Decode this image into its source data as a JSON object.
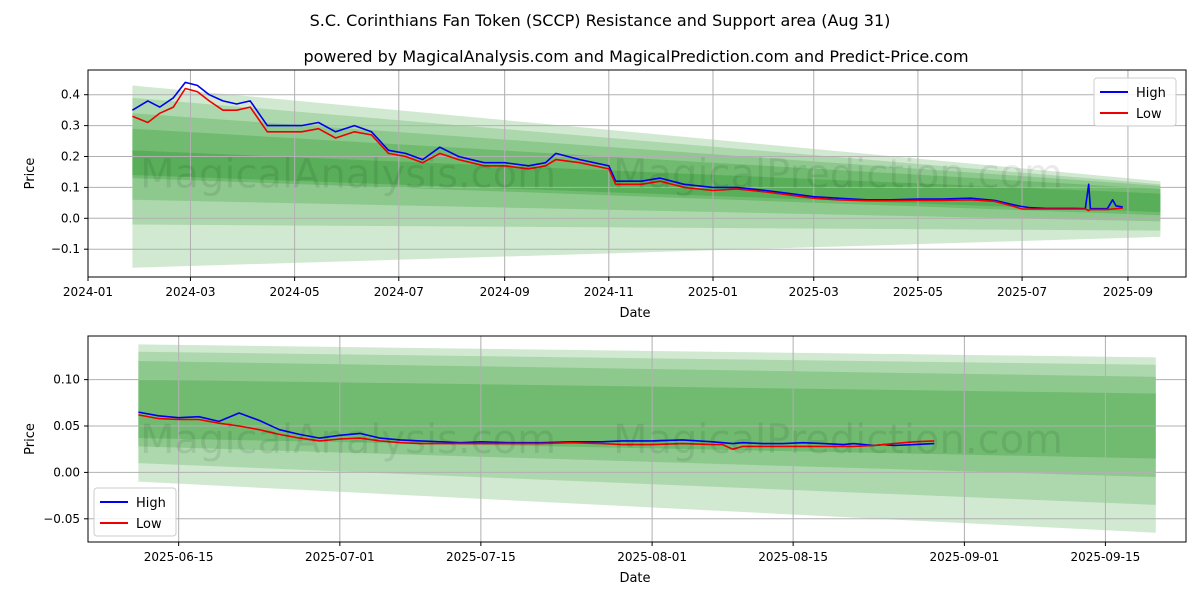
{
  "title": "S.C. Corinthians Fan Token (SCCP) Resistance and Support area (Aug 31)",
  "subtitle": "powered by MagicalAnalysis.com and MagicalPrediction.com and Predict-Price.com",
  "watermark": [
    "MagicalAnalysis.com",
    "MagicalPrediction.com"
  ],
  "colors": {
    "high": "#0000ee",
    "low": "#ee0000",
    "band": "#2e9a2e"
  },
  "chart_data": [
    {
      "type": "line",
      "xlabel": "Date",
      "ylabel": "Price",
      "xlim": [
        "2024-01-01",
        "2025-10-05"
      ],
      "ylim": [
        -0.19,
        0.48
      ],
      "x_ticks": [
        "2024-01",
        "2024-03",
        "2024-05",
        "2024-07",
        "2024-09",
        "2024-11",
        "2025-01",
        "2025-03",
        "2025-05",
        "2025-07",
        "2025-09"
      ],
      "y_ticks": [
        -0.1,
        0.0,
        0.1,
        0.2,
        0.3,
        0.4
      ],
      "y_tick_labels": [
        "−0.1",
        "0.0",
        "0.1",
        "0.2",
        "0.3",
        "0.4"
      ],
      "grid": true,
      "legend": "top-right",
      "series": [
        {
          "name": "High",
          "x": [
            "2024-01-27",
            "2024-02-05",
            "2024-02-12",
            "2024-02-20",
            "2024-02-27",
            "2024-03-05",
            "2024-03-12",
            "2024-03-20",
            "2024-03-28",
            "2024-04-05",
            "2024-04-15",
            "2024-04-25",
            "2024-05-05",
            "2024-05-15",
            "2024-05-25",
            "2024-06-05",
            "2024-06-15",
            "2024-06-25",
            "2024-07-05",
            "2024-07-15",
            "2024-07-25",
            "2024-08-05",
            "2024-08-20",
            "2024-09-01",
            "2024-09-15",
            "2024-09-25",
            "2024-10-01",
            "2024-10-15",
            "2024-11-01",
            "2024-11-05",
            "2024-11-20",
            "2024-12-01",
            "2024-12-15",
            "2025-01-01",
            "2025-01-15",
            "2025-02-01",
            "2025-02-15",
            "2025-03-01",
            "2025-03-15",
            "2025-04-01",
            "2025-04-15",
            "2025-05-01",
            "2025-05-15",
            "2025-06-01",
            "2025-06-15",
            "2025-06-25",
            "2025-07-01",
            "2025-07-05",
            "2025-07-15",
            "2025-08-01",
            "2025-08-07",
            "2025-08-09",
            "2025-08-10",
            "2025-08-20",
            "2025-08-23",
            "2025-08-25",
            "2025-08-29"
          ],
          "values": [
            0.35,
            0.38,
            0.36,
            0.39,
            0.44,
            0.43,
            0.4,
            0.38,
            0.37,
            0.38,
            0.3,
            0.3,
            0.3,
            0.31,
            0.28,
            0.3,
            0.28,
            0.22,
            0.21,
            0.19,
            0.23,
            0.2,
            0.18,
            0.18,
            0.17,
            0.18,
            0.21,
            0.19,
            0.17,
            0.12,
            0.12,
            0.13,
            0.11,
            0.1,
            0.1,
            0.09,
            0.08,
            0.07,
            0.065,
            0.06,
            0.06,
            0.062,
            0.062,
            0.065,
            0.058,
            0.045,
            0.038,
            0.035,
            0.032,
            0.032,
            0.031,
            0.11,
            0.031,
            0.031,
            0.06,
            0.04,
            0.037
          ]
        },
        {
          "name": "Low",
          "x": [
            "2024-01-27",
            "2024-02-05",
            "2024-02-12",
            "2024-02-20",
            "2024-02-27",
            "2024-03-05",
            "2024-03-12",
            "2024-03-20",
            "2024-03-28",
            "2024-04-05",
            "2024-04-15",
            "2024-04-25",
            "2024-05-05",
            "2024-05-15",
            "2024-05-25",
            "2024-06-05",
            "2024-06-15",
            "2024-06-25",
            "2024-07-05",
            "2024-07-15",
            "2024-07-25",
            "2024-08-05",
            "2024-08-20",
            "2024-09-01",
            "2024-09-15",
            "2024-09-25",
            "2024-10-01",
            "2024-10-15",
            "2024-11-01",
            "2024-11-05",
            "2024-11-20",
            "2024-12-01",
            "2024-12-15",
            "2025-01-01",
            "2025-01-15",
            "2025-02-01",
            "2025-02-15",
            "2025-03-01",
            "2025-03-15",
            "2025-04-01",
            "2025-04-15",
            "2025-05-01",
            "2025-05-15",
            "2025-06-01",
            "2025-06-15",
            "2025-06-25",
            "2025-07-01",
            "2025-07-05",
            "2025-07-15",
            "2025-08-01",
            "2025-08-07",
            "2025-08-09",
            "2025-08-10",
            "2025-08-20",
            "2025-08-23",
            "2025-08-25",
            "2025-08-29"
          ],
          "values": [
            0.33,
            0.31,
            0.34,
            0.36,
            0.42,
            0.41,
            0.38,
            0.35,
            0.35,
            0.36,
            0.28,
            0.28,
            0.28,
            0.29,
            0.26,
            0.28,
            0.27,
            0.21,
            0.2,
            0.18,
            0.21,
            0.19,
            0.17,
            0.17,
            0.16,
            0.17,
            0.19,
            0.18,
            0.16,
            0.11,
            0.11,
            0.12,
            0.1,
            0.09,
            0.095,
            0.085,
            0.075,
            0.065,
            0.06,
            0.057,
            0.057,
            0.058,
            0.058,
            0.06,
            0.055,
            0.04,
            0.03,
            0.03,
            0.03,
            0.03,
            0.03,
            0.025,
            0.028,
            0.028,
            0.03,
            0.031,
            0.033
          ]
        }
      ],
      "support_resistance_bands": [
        {
          "x": [
            "2024-01-27",
            "2025-09-20"
          ],
          "upper": [
            0.43,
            0.12
          ],
          "lower": [
            -0.16,
            -0.06
          ]
        },
        {
          "x": [
            "2024-01-27",
            "2025-09-20"
          ],
          "upper": [
            0.39,
            0.11
          ],
          "lower": [
            -0.02,
            -0.04
          ]
        },
        {
          "x": [
            "2024-01-27",
            "2025-09-20"
          ],
          "upper": [
            0.34,
            0.105
          ],
          "lower": [
            0.06,
            -0.01
          ]
        },
        {
          "x": [
            "2024-01-27",
            "2025-09-20"
          ],
          "upper": [
            0.29,
            0.095
          ],
          "lower": [
            0.13,
            0.01
          ]
        },
        {
          "x": [
            "2024-01-27",
            "2025-09-20"
          ],
          "upper": [
            0.22,
            0.08
          ],
          "lower": [
            0.14,
            0.02
          ]
        }
      ]
    },
    {
      "type": "line",
      "xlabel": "Date",
      "ylabel": "Price",
      "xlim": [
        "2025-06-06",
        "2025-09-23"
      ],
      "ylim": [
        -0.075,
        0.147
      ],
      "x_ticks": [
        "2025-06-15",
        "2025-07-01",
        "2025-07-15",
        "2025-08-01",
        "2025-08-15",
        "2025-09-01",
        "2025-09-15"
      ],
      "y_ticks": [
        -0.05,
        0.0,
        0.05,
        0.1
      ],
      "y_tick_labels": [
        "−0.05",
        "0.00",
        "0.05",
        "0.10"
      ],
      "grid": true,
      "legend": "bottom-left",
      "series": [
        {
          "name": "High",
          "x": [
            "2025-06-11",
            "2025-06-13",
            "2025-06-15",
            "2025-06-17",
            "2025-06-19",
            "2025-06-21",
            "2025-06-23",
            "2025-06-25",
            "2025-06-27",
            "2025-06-29",
            "2025-07-01",
            "2025-07-03",
            "2025-07-05",
            "2025-07-07",
            "2025-07-09",
            "2025-07-11",
            "2025-07-13",
            "2025-07-15",
            "2025-07-18",
            "2025-07-21",
            "2025-07-24",
            "2025-07-27",
            "2025-07-29",
            "2025-08-01",
            "2025-08-04",
            "2025-08-07",
            "2025-08-08",
            "2025-08-09",
            "2025-08-10",
            "2025-08-12",
            "2025-08-14",
            "2025-08-16",
            "2025-08-18",
            "2025-08-20",
            "2025-08-21",
            "2025-08-23",
            "2025-08-24",
            "2025-08-25",
            "2025-08-27",
            "2025-08-29"
          ],
          "values": [
            0.065,
            0.061,
            0.059,
            0.06,
            0.055,
            0.064,
            0.056,
            0.046,
            0.041,
            0.037,
            0.04,
            0.042,
            0.037,
            0.035,
            0.034,
            0.033,
            0.032,
            0.033,
            0.032,
            0.032,
            0.033,
            0.033,
            0.034,
            0.034,
            0.035,
            0.033,
            0.032,
            0.031,
            0.032,
            0.031,
            0.031,
            0.032,
            0.031,
            0.03,
            0.031,
            0.029,
            0.03,
            0.029,
            0.03,
            0.031
          ]
        },
        {
          "name": "Low",
          "x": [
            "2025-06-11",
            "2025-06-13",
            "2025-06-15",
            "2025-06-17",
            "2025-06-19",
            "2025-06-21",
            "2025-06-23",
            "2025-06-25",
            "2025-06-27",
            "2025-06-29",
            "2025-07-01",
            "2025-07-03",
            "2025-07-05",
            "2025-07-07",
            "2025-07-09",
            "2025-07-11",
            "2025-07-13",
            "2025-07-15",
            "2025-07-18",
            "2025-07-21",
            "2025-07-24",
            "2025-07-27",
            "2025-07-29",
            "2025-08-01",
            "2025-08-04",
            "2025-08-07",
            "2025-08-08",
            "2025-08-09",
            "2025-08-10",
            "2025-08-12",
            "2025-08-14",
            "2025-08-16",
            "2025-08-18",
            "2025-08-20",
            "2025-08-21",
            "2025-08-23",
            "2025-08-24",
            "2025-08-25",
            "2025-08-27",
            "2025-08-29"
          ],
          "values": [
            0.062,
            0.058,
            0.057,
            0.057,
            0.053,
            0.05,
            0.046,
            0.041,
            0.037,
            0.034,
            0.036,
            0.037,
            0.034,
            0.032,
            0.031,
            0.031,
            0.031,
            0.031,
            0.031,
            0.031,
            0.032,
            0.031,
            0.03,
            0.03,
            0.031,
            0.03,
            0.03,
            0.025,
            0.028,
            0.028,
            0.028,
            0.028,
            0.028,
            0.028,
            0.028,
            0.029,
            0.03,
            0.031,
            0.033,
            0.034
          ]
        }
      ],
      "support_resistance_bands": [
        {
          "x": [
            "2025-06-11",
            "2025-09-20"
          ],
          "upper": [
            0.138,
            0.124
          ],
          "lower": [
            -0.01,
            -0.065
          ]
        },
        {
          "x": [
            "2025-06-11",
            "2025-09-20"
          ],
          "upper": [
            0.13,
            0.116
          ],
          "lower": [
            0.01,
            -0.035
          ]
        },
        {
          "x": [
            "2025-06-11",
            "2025-09-20"
          ],
          "upper": [
            0.12,
            0.103
          ],
          "lower": [
            0.028,
            -0.005
          ]
        },
        {
          "x": [
            "2025-06-11",
            "2025-09-20"
          ],
          "upper": [
            0.1,
            0.085
          ],
          "lower": [
            0.037,
            0.015
          ]
        }
      ]
    }
  ]
}
